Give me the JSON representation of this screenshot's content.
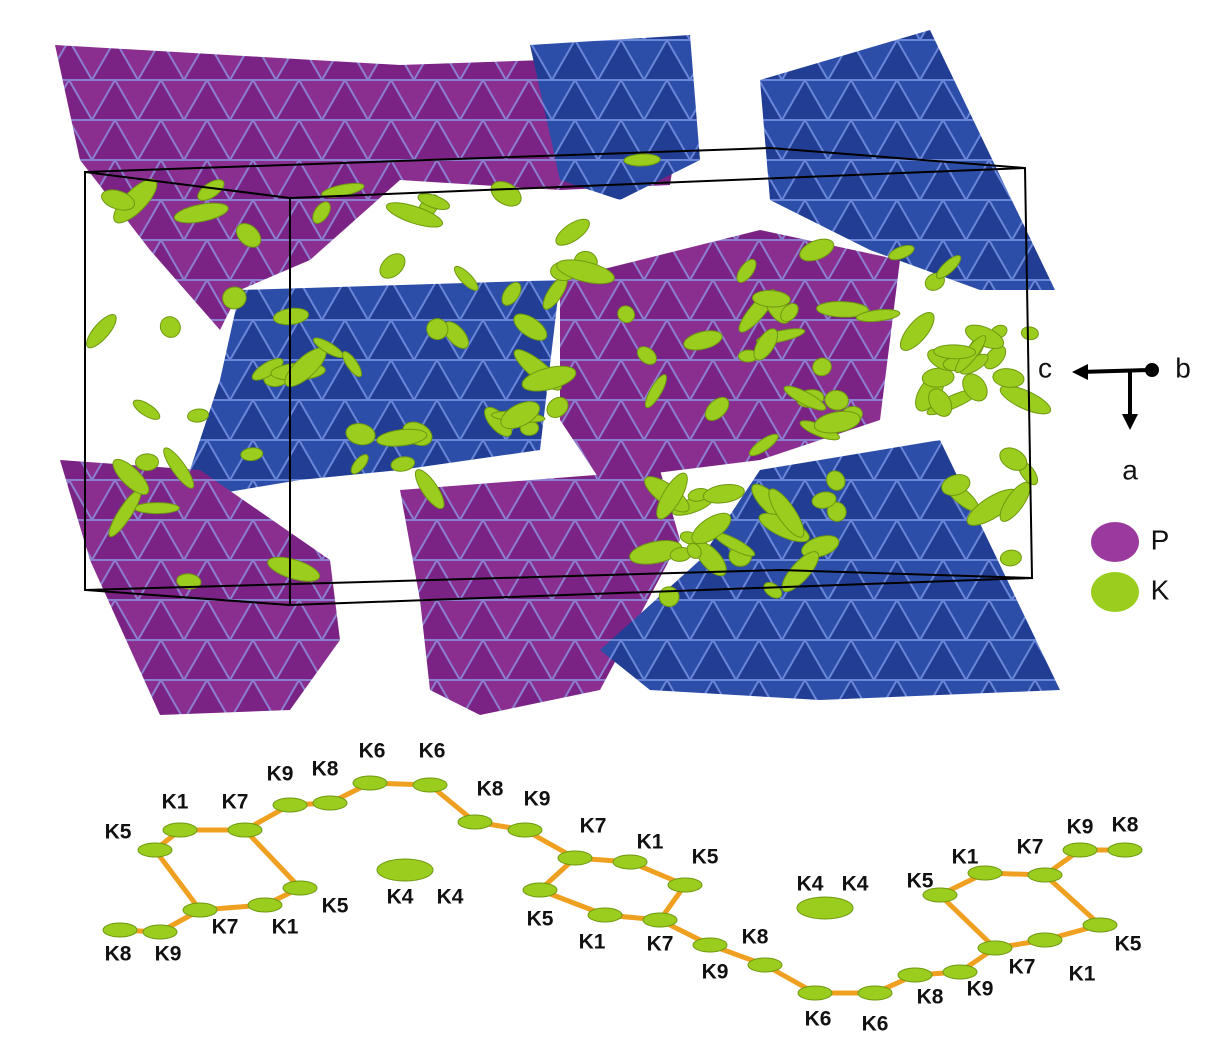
{
  "axes": {
    "horizontal": "c",
    "viewing": "b",
    "vertical": "a"
  },
  "legend": [
    {
      "label": "P",
      "color": "#9b3a9e"
    },
    {
      "label": "K",
      "color": "#9acd1e"
    }
  ],
  "atom_labels": [
    "K9",
    "K8",
    "K6",
    "K6",
    "K1",
    "K7",
    "K8",
    "K9",
    "K5",
    "K7",
    "K1",
    "K5",
    "K4",
    "K4",
    "K5",
    "K7",
    "K1",
    "K8",
    "K9",
    "K5",
    "K1",
    "K7",
    "K9",
    "K8",
    "K4",
    "K4",
    "K5",
    "K1",
    "K7",
    "K9",
    "K8",
    "K5",
    "K7",
    "K1",
    "K9",
    "K8",
    "K6",
    "K6"
  ]
}
